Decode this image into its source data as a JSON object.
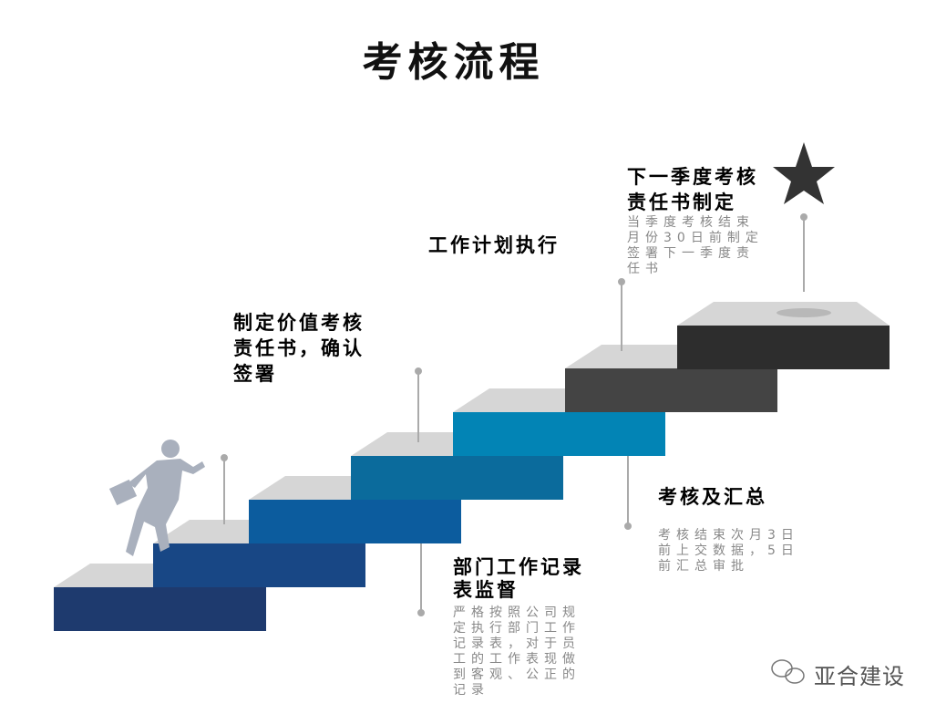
{
  "title": "考核流程",
  "steps": [
    {
      "heading": "制定价值考核责任书，确认签署",
      "heading_lines": [
        "制定价值考核",
        "责任书，确认",
        "签署"
      ]
    },
    {
      "heading_lines": [
        "部门工作记录",
        "表监督"
      ],
      "description_lines": [
        "严格按照公司规",
        "定执行部门工作",
        "记录表，对于员",
        "工的工作表现做",
        "到客观、公正的",
        "记录"
      ]
    },
    {
      "heading_lines": [
        "工作计划执行"
      ]
    },
    {
      "heading_lines": [
        "考核及汇总"
      ],
      "description_lines": [
        "考核结束次月3日",
        "前上交数据，5日",
        "前汇总审批"
      ]
    },
    {
      "heading_lines": [
        "下一季度考核",
        "责任书制定"
      ],
      "description_lines": [
        "当季度考核结束",
        "月份30日前制定",
        "签署下一季度责",
        "任书"
      ]
    }
  ],
  "stair_colors": [
    "#1e3a6e",
    "#184785",
    "#0c5c9e",
    "#0b6b9c",
    "#0284b5",
    "#444444",
    "#2d2d2d"
  ],
  "top_color": "#d6d6d6",
  "watermark": "亚合建设",
  "icons": [
    "runner-figure",
    "star-icon",
    "wechat-icon"
  ]
}
